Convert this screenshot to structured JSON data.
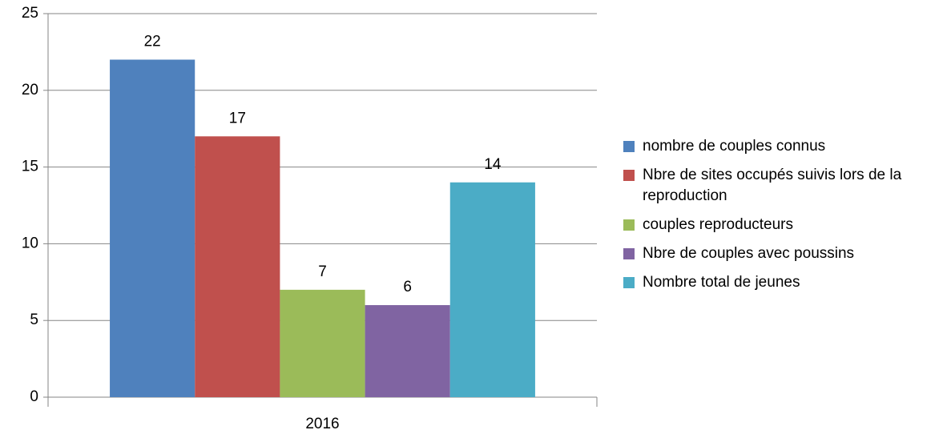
{
  "chart_data": {
    "type": "bar",
    "categories": [
      "2016"
    ],
    "series": [
      {
        "name": "nombre de couples connus",
        "color": "#4f81bd",
        "values": [
          22
        ]
      },
      {
        "name": "Nbre de sites occupés suivis lors de la reproduction",
        "color": "#c0504d",
        "values": [
          17
        ]
      },
      {
        "name": "couples reproducteurs",
        "color": "#9bbb59",
        "values": [
          7
        ]
      },
      {
        "name": "Nbre de couples avec poussins",
        "color": "#8064a2",
        "values": [
          6
        ]
      },
      {
        "name": "Nombre total de jeunes",
        "color": "#4bacc6",
        "values": [
          14
        ]
      }
    ],
    "ylim": [
      0,
      25
    ],
    "yticks": [
      0,
      5,
      10,
      15,
      20,
      25
    ],
    "grid": true,
    "legend": "right"
  }
}
